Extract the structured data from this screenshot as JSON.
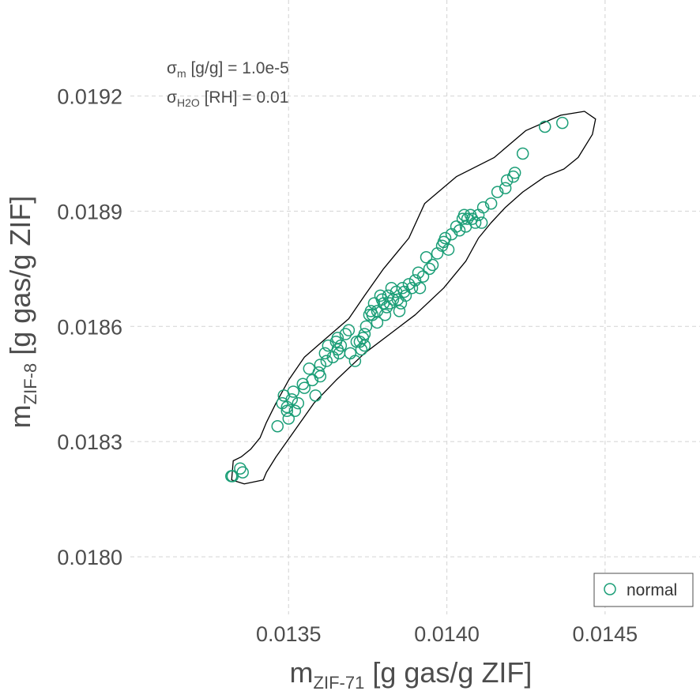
{
  "chart_data": {
    "type": "scatter",
    "xlabel": {
      "main": "m",
      "sub": "ZIF-71",
      "rest": " [g gas/g ZIF]"
    },
    "ylabel": {
      "main": "m",
      "sub": "ZIF-8",
      "rest": " [g gas/g ZIF]"
    },
    "xlim": [
      0.013,
      0.0148
    ],
    "ylim": [
      0.01785,
      0.01945
    ],
    "x_ticks": [
      0.0135,
      0.014,
      0.0145
    ],
    "x_tick_labels": [
      "0.0135",
      "0.0140",
      "0.0145"
    ],
    "y_ticks": [
      0.018,
      0.0183,
      0.0186,
      0.0189,
      0.0192
    ],
    "y_tick_labels": [
      "0.0180",
      "0.0183",
      "0.0186",
      "0.0189",
      "0.0192"
    ],
    "grid": true,
    "legend_position": "bottom-right",
    "annotations": [
      {
        "main": "σ",
        "sub": "m",
        "rest": " [g/g] = 1.0e-5"
      },
      {
        "main": "σ",
        "sub": "H2O",
        "rest": " [RH] = 0.01"
      }
    ],
    "series": [
      {
        "name": "normal",
        "color": "#1b9e77",
        "marker": "open-circle",
        "points": [
          [
            0.013319,
            0.01821
          ],
          [
            0.013323,
            0.01821
          ],
          [
            0.013347,
            0.01823
          ],
          [
            0.013355,
            0.01822
          ],
          [
            0.013465,
            0.01834
          ],
          [
            0.01348,
            0.0184
          ],
          [
            0.013485,
            0.01842
          ],
          [
            0.013495,
            0.01838
          ],
          [
            0.013495,
            0.01839
          ],
          [
            0.0135,
            0.01836
          ],
          [
            0.01351,
            0.01841
          ],
          [
            0.013515,
            0.01843
          ],
          [
            0.01353,
            0.0184
          ],
          [
            0.013545,
            0.01845
          ],
          [
            0.01355,
            0.01844
          ],
          [
            0.013565,
            0.01849
          ],
          [
            0.013575,
            0.01846
          ],
          [
            0.013585,
            0.01842
          ],
          [
            0.013595,
            0.01848
          ],
          [
            0.0136,
            0.0185
          ],
          [
            0.013615,
            0.01853
          ],
          [
            0.01362,
            0.01851
          ],
          [
            0.013625,
            0.01855
          ],
          [
            0.01364,
            0.01852
          ],
          [
            0.01365,
            0.01856
          ],
          [
            0.013655,
            0.01857
          ],
          [
            0.01366,
            0.01853
          ],
          [
            0.013665,
            0.01855
          ],
          [
            0.01368,
            0.01858
          ],
          [
            0.013695,
            0.01853
          ],
          [
            0.01371,
            0.01851
          ],
          [
            0.013715,
            0.01856
          ],
          [
            0.013725,
            0.01856
          ],
          [
            0.01373,
            0.01854
          ],
          [
            0.013735,
            0.01857
          ],
          [
            0.01374,
            0.01855
          ],
          [
            0.01374,
            0.01858
          ],
          [
            0.013745,
            0.0186
          ],
          [
            0.013755,
            0.01863
          ],
          [
            0.01376,
            0.01864
          ],
          [
            0.013765,
            0.01863
          ],
          [
            0.01377,
            0.01866
          ],
          [
            0.01378,
            0.01861
          ],
          [
            0.01378,
            0.01864
          ],
          [
            0.01379,
            0.01868
          ],
          [
            0.013795,
            0.01867
          ],
          [
            0.0138,
            0.01866
          ],
          [
            0.013805,
            0.01863
          ],
          [
            0.01381,
            0.01865
          ],
          [
            0.013815,
            0.01868
          ],
          [
            0.01382,
            0.01866
          ],
          [
            0.013825,
            0.0187
          ],
          [
            0.01383,
            0.01867
          ],
          [
            0.01384,
            0.01869
          ],
          [
            0.013845,
            0.01867
          ],
          [
            0.013855,
            0.01866
          ],
          [
            0.01386,
            0.0187
          ],
          [
            0.013865,
            0.01869
          ],
          [
            0.01387,
            0.01868
          ],
          [
            0.01388,
            0.01871
          ],
          [
            0.01389,
            0.0187
          ],
          [
            0.0139,
            0.01872
          ],
          [
            0.01391,
            0.01874
          ],
          [
            0.013915,
            0.0187
          ],
          [
            0.013925,
            0.01873
          ],
          [
            0.013935,
            0.01878
          ],
          [
            0.013945,
            0.01875
          ],
          [
            0.013955,
            0.01876
          ],
          [
            0.01397,
            0.01879
          ],
          [
            0.013985,
            0.01881
          ],
          [
            0.01399,
            0.01882
          ],
          [
            0.013995,
            0.01883
          ],
          [
            0.014005,
            0.0188
          ],
          [
            0.014015,
            0.01884
          ],
          [
            0.01403,
            0.01886
          ],
          [
            0.01404,
            0.01885
          ],
          [
            0.01405,
            0.01888
          ],
          [
            0.014055,
            0.01889
          ],
          [
            0.01406,
            0.01886
          ],
          [
            0.014065,
            0.01888
          ],
          [
            0.014075,
            0.01889
          ],
          [
            0.01408,
            0.01888
          ],
          [
            0.01409,
            0.01887
          ],
          [
            0.0141,
            0.01889
          ],
          [
            0.01411,
            0.01887
          ],
          [
            0.014115,
            0.01891
          ],
          [
            0.01414,
            0.01892
          ],
          [
            0.01416,
            0.01895
          ],
          [
            0.014185,
            0.01896
          ],
          [
            0.01419,
            0.01898
          ],
          [
            0.01421,
            0.01899
          ],
          [
            0.014215,
            0.019
          ],
          [
            0.01424,
            0.01905
          ],
          [
            0.01431,
            0.01912
          ],
          [
            0.014365,
            0.01913
          ],
          [
            0.01385,
            0.01864
          ],
          [
            0.01369,
            0.01859
          ],
          [
            0.0136,
            0.01847
          ],
          [
            0.01352,
            0.01838
          ],
          [
            0.013655,
            0.01854
          ]
        ]
      }
    ],
    "contour": [
      [
        0.01332,
        0.0182
      ],
      [
        0.013325,
        0.01825
      ],
      [
        0.01335,
        0.01826
      ],
      [
        0.01338,
        0.01828
      ],
      [
        0.01341,
        0.01831
      ],
      [
        0.01343,
        0.01835
      ],
      [
        0.01346,
        0.0184
      ],
      [
        0.0135,
        0.01846
      ],
      [
        0.01355,
        0.01852
      ],
      [
        0.01362,
        0.01857
      ],
      [
        0.01369,
        0.01862
      ],
      [
        0.01374,
        0.01868
      ],
      [
        0.0138,
        0.01875
      ],
      [
        0.01388,
        0.01883
      ],
      [
        0.01393,
        0.01892
      ],
      [
        0.01403,
        0.01899
      ],
      [
        0.01415,
        0.01904
      ],
      [
        0.01425,
        0.01911
      ],
      [
        0.01436,
        0.01915
      ],
      [
        0.014435,
        0.01916
      ],
      [
        0.01447,
        0.01914
      ],
      [
        0.01446,
        0.0191
      ],
      [
        0.014415,
        0.01904
      ],
      [
        0.01437,
        0.01901
      ],
      [
        0.01431,
        0.01899
      ],
      [
        0.01424,
        0.01895
      ],
      [
        0.014185,
        0.01891
      ],
      [
        0.01414,
        0.01887
      ],
      [
        0.0141,
        0.01883
      ],
      [
        0.01406,
        0.01877
      ],
      [
        0.01399,
        0.0187
      ],
      [
        0.0139,
        0.01863
      ],
      [
        0.01382,
        0.01858
      ],
      [
        0.01374,
        0.01853
      ],
      [
        0.01365,
        0.01846
      ],
      [
        0.01358,
        0.0184
      ],
      [
        0.01352,
        0.01833
      ],
      [
        0.01346,
        0.01826
      ],
      [
        0.01343,
        0.01822
      ],
      [
        0.01342,
        0.0182
      ],
      [
        0.01336,
        0.01819
      ]
    ],
    "contour_color": "#000000"
  }
}
